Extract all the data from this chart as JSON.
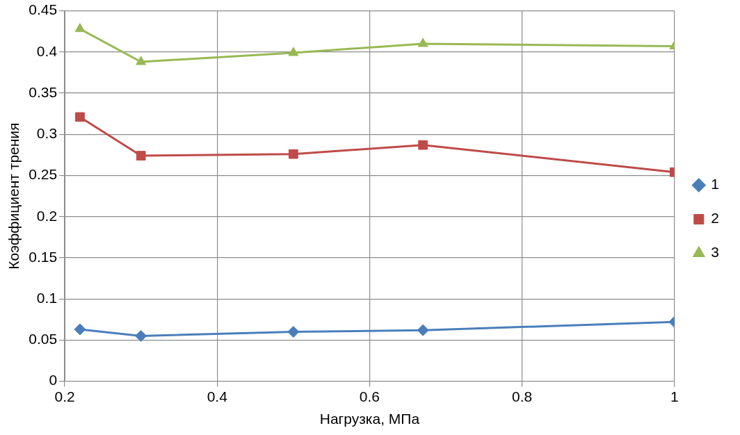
{
  "chart_data": {
    "type": "line",
    "xlabel": "Нагрузка, МПа",
    "ylabel": "Коэффициент трения",
    "x": [
      0.22,
      0.3,
      0.5,
      0.67,
      1
    ],
    "series": [
      {
        "name": "1",
        "color": "#4a7ebb",
        "marker": "diamond",
        "values": [
          0.063,
          0.055,
          0.06,
          0.062,
          0.072
        ]
      },
      {
        "name": "2",
        "color": "#be4b48",
        "marker": "square",
        "values": [
          0.321,
          0.274,
          0.276,
          0.287,
          0.254
        ]
      },
      {
        "name": "3",
        "color": "#98b954",
        "marker": "triangle",
        "values": [
          0.428,
          0.388,
          0.399,
          0.41,
          0.407
        ]
      }
    ],
    "xlim": [
      0.2,
      1
    ],
    "xticks": [
      0.2,
      0.4,
      0.6,
      0.8,
      1
    ],
    "ylim": [
      0,
      0.45
    ],
    "yticks": [
      0,
      0.05,
      0.1,
      0.15,
      0.2,
      0.25,
      0.3,
      0.35,
      0.4,
      0.45
    ],
    "grid": true,
    "legend": "right",
    "line_style": "solid"
  }
}
